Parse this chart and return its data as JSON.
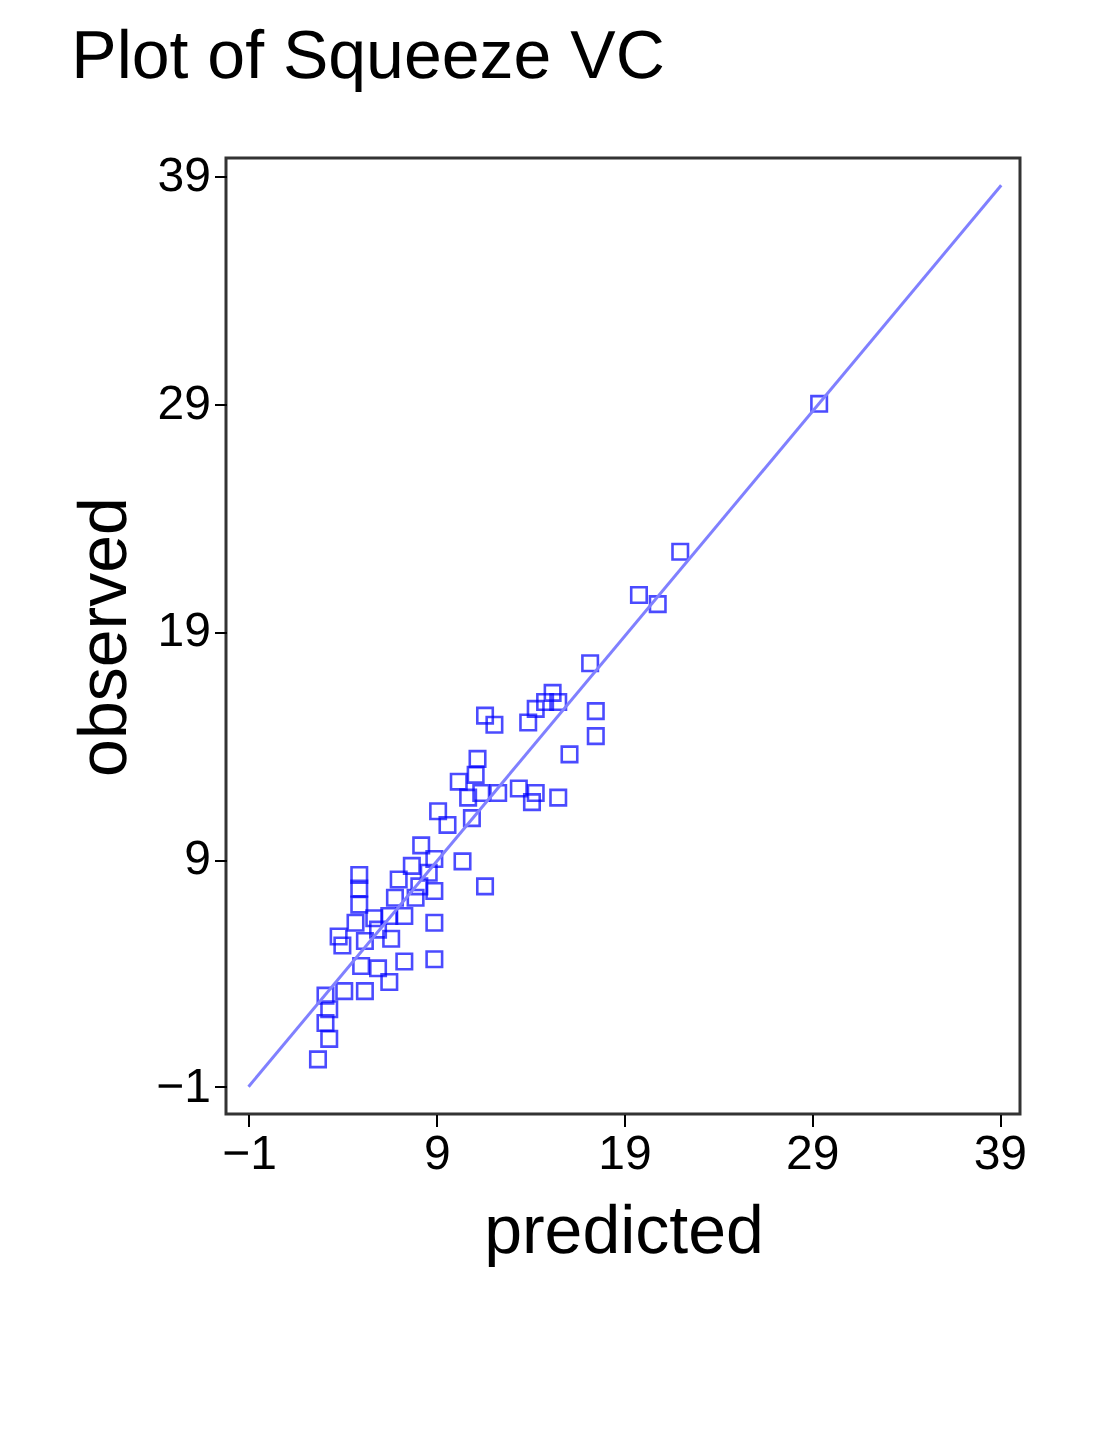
{
  "chart_data": {
    "type": "scatter",
    "title": "Plot of Squeeze VC",
    "xlabel": "predicted",
    "ylabel": "observed",
    "xlim": [
      -2.2,
      40.1
    ],
    "ylim": [
      -2.2,
      39.8
    ],
    "xticks": [
      -1,
      9,
      19,
      29,
      39
    ],
    "yticks": [
      -1,
      9,
      19,
      29,
      39
    ],
    "grid": false,
    "marker": "square",
    "series": [
      {
        "color": "#0000ff",
        "x": [
          29.4,
          22.0,
          19.8,
          20.8,
          17.2,
          17.5,
          17.5,
          16.1,
          15.2,
          14.8,
          14.3,
          15.5,
          13.9,
          11.6,
          12.1,
          11.2,
          11.1,
          10.2,
          11.4,
          10.7,
          12.3,
          13.4,
          14.3,
          14.1,
          15.5,
          9.6,
          9.1,
          10.9,
          8.2,
          8.9,
          10.4,
          11.6,
          7.7,
          7.0,
          8.1,
          8.9,
          8.9,
          6.8,
          6.5,
          5.9,
          7.3,
          4.9,
          4.9,
          4.9,
          4.7,
          3.8,
          4.0,
          5.2,
          7.3,
          8.9,
          5.0,
          5.9,
          6.5,
          4.1,
          5.2,
          3.1,
          3.3,
          3.1,
          3.3,
          2.7,
          5.7,
          6.6,
          7.9,
          8.6
        ],
        "values": [
          29.0,
          22.5,
          20.6,
          20.2,
          17.6,
          15.5,
          14.4,
          13.6,
          16.3,
          15.9,
          15.6,
          15.9,
          15.0,
          15.3,
          14.9,
          13.4,
          12.7,
          12.4,
          11.9,
          11.7,
          11.9,
          12.1,
          11.9,
          11.5,
          11.7,
          10.5,
          11.1,
          10.8,
          9.6,
          9.0,
          8.9,
          7.8,
          8.7,
          8.1,
          7.8,
          7.6,
          6.2,
          7.3,
          6.5,
          5.9,
          6.5,
          8.3,
          7.7,
          7.0,
          6.2,
          5.6,
          5.2,
          5.4,
          4.5,
          4.6,
          4.3,
          4.2,
          3.6,
          3.2,
          3.2,
          3.0,
          2.4,
          1.8,
          1.1,
          0.2,
          6.4,
          5.5,
          7.3,
          8.4
        ]
      },
      {
        "type": "line",
        "color": "#8080ff",
        "x": [
          -1,
          39.1
        ],
        "values": [
          -1,
          38.6
        ],
        "marker": "none",
        "line_style": "solid"
      }
    ]
  }
}
